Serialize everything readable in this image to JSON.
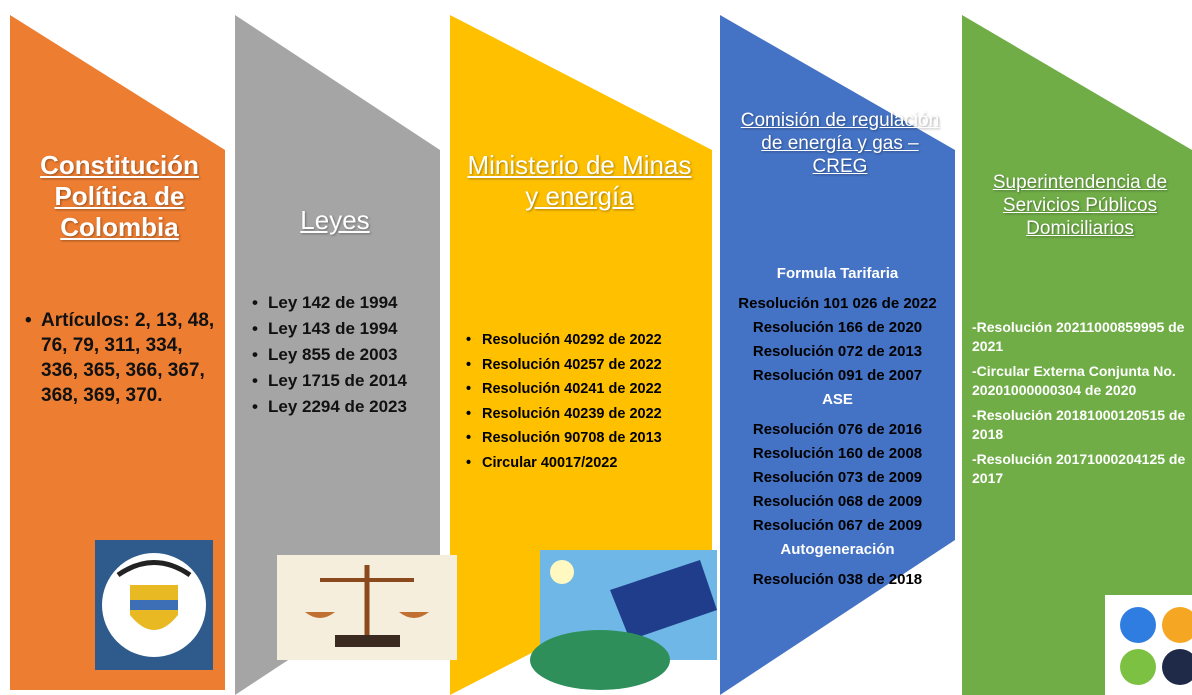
{
  "panels": [
    {
      "title": "Constitución Política de Colombia",
      "sections": [
        {
          "items": [
            "Artículos: 2, 13, 48, 76, 79, 311, 334, 336, 365, 366, 367, 368, 369, 370."
          ]
        }
      ]
    },
    {
      "title": "Leyes",
      "sections": [
        {
          "items": [
            "Ley 142 de 1994",
            "Ley 143 de 1994",
            "Ley 855 de 2003",
            "Ley 1715 de 2014",
            "Ley 2294 de 2023"
          ]
        }
      ]
    },
    {
      "title": "Ministerio de Minas y energía",
      "sections": [
        {
          "items": [
            "Resolución 40292 de 2022",
            "Resolución 40257 de 2022",
            "Resolución 40241 de 2022",
            "Resolución 40239 de 2022",
            "Resolución 90708 de 2013",
            "Circular 40017/2022"
          ]
        }
      ]
    },
    {
      "title": "Comisión de regulación de energía y gas – CREG",
      "sections": [
        {
          "heading": "Formula Tarifaria",
          "items": [
            "Resolución 101 026 de 2022",
            "Resolución 166 de 2020",
            "Resolución 072 de 2013",
            "Resolución 091 de 2007"
          ]
        },
        {
          "heading": "ASE",
          "items": [
            "Resolución 076 de 2016",
            "Resolución 160 de 2008",
            "Resolución 073 de 2009",
            "Resolución 068 de 2009",
            "Resolución 067 de 2009"
          ]
        },
        {
          "heading": "Autogeneración",
          "items": [
            "Resolución 038 de 2018"
          ]
        }
      ]
    },
    {
      "title": "Superintendencia de Servicios Públicos Domiciliarios",
      "sections": [
        {
          "items": [
            "-Resolución 20211000859995 de 2021",
            "-Circular Externa Conjunta No.  20201000000304 de 2020",
            "-Resolución 20181000120515 de 2018",
            "-Resolución 20171000204125 de 2017"
          ]
        }
      ]
    }
  ]
}
